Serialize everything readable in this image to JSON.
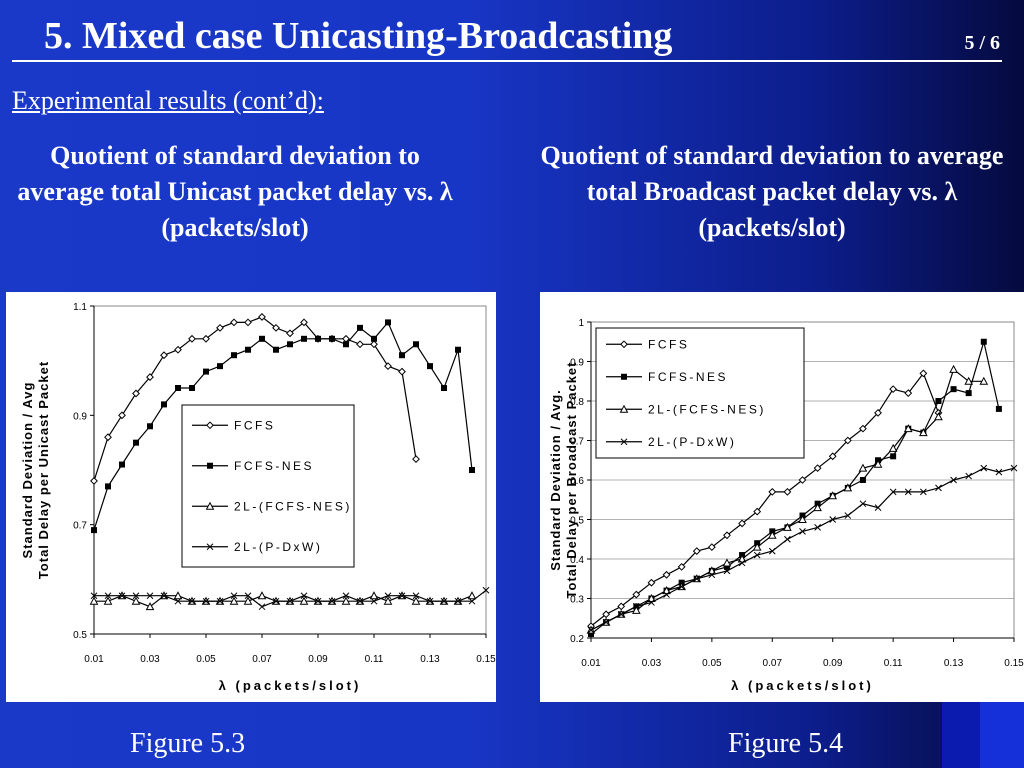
{
  "slide": {
    "title": "5.   Mixed case Unicasting-Broadcasting",
    "page": "5 / 6",
    "subtitle": "Experimental results (cont’d):",
    "caption_left": "Quotient of standard deviation to average total Unicast packet delay vs. λ (packets/slot)",
    "caption_right": "Quotient of standard deviation to average total Broadcast packet delay vs. λ (packets/slot)",
    "figure_left": "Figure 5.3",
    "figure_right": "Figure 5.4",
    "colors": {
      "background": "#1836c6",
      "text": "#ffffff",
      "plot_bg": "#ffffff",
      "lines": "#000000"
    }
  },
  "chart_data": [
    {
      "type": "line",
      "xlabel": "λ (packets/slot)",
      "ylabel": "Standard Deviation / Avg Total Delay per Unicast Packet",
      "xlim": [
        0.01,
        0.15
      ],
      "ylim": [
        0.5,
        1.1
      ],
      "xticks": [
        "0.01",
        "0.03",
        "0.05",
        "0.07",
        "0.09",
        "0.11",
        "0.13",
        "0.15"
      ],
      "yticks": [
        "0.5",
        "0.7",
        "0.9",
        "1.1"
      ],
      "grid": false,
      "legend_position": "center-right",
      "series": [
        {
          "name": "FCFS",
          "marker": "diamond-open",
          "x": [
            0.01,
            0.015,
            0.02,
            0.025,
            0.03,
            0.035,
            0.04,
            0.045,
            0.05,
            0.055,
            0.06,
            0.065,
            0.07,
            0.075,
            0.08,
            0.085,
            0.09,
            0.095,
            0.1,
            0.105,
            0.11,
            0.115,
            0.12,
            0.125
          ],
          "y": [
            0.78,
            0.86,
            0.9,
            0.94,
            0.97,
            1.01,
            1.02,
            1.04,
            1.04,
            1.06,
            1.07,
            1.07,
            1.08,
            1.06,
            1.05,
            1.07,
            1.04,
            1.04,
            1.04,
            1.03,
            1.03,
            0.99,
            0.98,
            0.82
          ]
        },
        {
          "name": "FCFS-NES",
          "marker": "square-filled",
          "x": [
            0.01,
            0.015,
            0.02,
            0.025,
            0.03,
            0.035,
            0.04,
            0.045,
            0.05,
            0.055,
            0.06,
            0.065,
            0.07,
            0.075,
            0.08,
            0.085,
            0.09,
            0.095,
            0.1,
            0.105,
            0.11,
            0.115,
            0.12,
            0.125,
            0.13,
            0.135,
            0.14,
            0.145
          ],
          "y": [
            0.69,
            0.77,
            0.81,
            0.85,
            0.88,
            0.92,
            0.95,
            0.95,
            0.98,
            0.99,
            1.01,
            1.02,
            1.04,
            1.02,
            1.03,
            1.04,
            1.04,
            1.04,
            1.03,
            1.06,
            1.04,
            1.07,
            1.01,
            1.03,
            0.99,
            0.95,
            1.02,
            0.8
          ]
        },
        {
          "name": "2L-(FCFS-NES)",
          "marker": "triangle-open",
          "x": [
            0.01,
            0.015,
            0.02,
            0.025,
            0.03,
            0.035,
            0.04,
            0.045,
            0.05,
            0.055,
            0.06,
            0.065,
            0.07,
            0.075,
            0.08,
            0.085,
            0.09,
            0.095,
            0.1,
            0.105,
            0.11,
            0.115,
            0.12,
            0.125,
            0.13,
            0.135,
            0.14,
            0.145
          ],
          "y": [
            0.56,
            0.56,
            0.57,
            0.56,
            0.55,
            0.57,
            0.57,
            0.56,
            0.56,
            0.56,
            0.56,
            0.56,
            0.57,
            0.56,
            0.56,
            0.56,
            0.56,
            0.56,
            0.56,
            0.56,
            0.57,
            0.56,
            0.57,
            0.56,
            0.56,
            0.56,
            0.56,
            0.57
          ]
        },
        {
          "name": "2L-(P-DxW)",
          "marker": "x",
          "x": [
            0.01,
            0.015,
            0.02,
            0.025,
            0.03,
            0.035,
            0.04,
            0.045,
            0.05,
            0.055,
            0.06,
            0.065,
            0.07,
            0.075,
            0.08,
            0.085,
            0.09,
            0.095,
            0.1,
            0.105,
            0.11,
            0.115,
            0.12,
            0.125,
            0.13,
            0.135,
            0.14,
            0.145,
            0.15
          ],
          "y": [
            0.57,
            0.57,
            0.57,
            0.57,
            0.57,
            0.57,
            0.56,
            0.56,
            0.56,
            0.56,
            0.57,
            0.57,
            0.55,
            0.56,
            0.56,
            0.57,
            0.56,
            0.56,
            0.57,
            0.56,
            0.56,
            0.57,
            0.57,
            0.57,
            0.56,
            0.56,
            0.56,
            0.56,
            0.58
          ]
        }
      ]
    },
    {
      "type": "line",
      "xlabel": "λ (packets/slot)",
      "ylabel": "Standard Deviation / Avg. Total Delay per Broadcast Packet",
      "xlim": [
        0.01,
        0.15
      ],
      "ylim": [
        0.2,
        1.0
      ],
      "xticks": [
        "0.01",
        "0.03",
        "0.05",
        "0.07",
        "0.09",
        "0.11",
        "0.13",
        "0.15"
      ],
      "yticks": [
        "0.2",
        "0.3",
        "0.4",
        "0.5",
        "0.6",
        "0.7",
        "0.8",
        "0.9",
        "1"
      ],
      "grid": true,
      "legend_position": "top-left",
      "series": [
        {
          "name": "FCFS",
          "marker": "diamond-open",
          "x": [
            0.01,
            0.015,
            0.02,
            0.025,
            0.03,
            0.035,
            0.04,
            0.045,
            0.05,
            0.055,
            0.06,
            0.065,
            0.07,
            0.075,
            0.08,
            0.085,
            0.09,
            0.095,
            0.1,
            0.105,
            0.11,
            0.115,
            0.12,
            0.125
          ],
          "y": [
            0.23,
            0.26,
            0.28,
            0.31,
            0.34,
            0.36,
            0.38,
            0.42,
            0.43,
            0.46,
            0.49,
            0.52,
            0.57,
            0.57,
            0.6,
            0.63,
            0.66,
            0.7,
            0.73,
            0.77,
            0.83,
            0.82,
            0.87,
            0.77
          ]
        },
        {
          "name": "FCFS-NES",
          "marker": "square-filled",
          "x": [
            0.01,
            0.015,
            0.02,
            0.025,
            0.03,
            0.035,
            0.04,
            0.045,
            0.05,
            0.055,
            0.06,
            0.065,
            0.07,
            0.075,
            0.08,
            0.085,
            0.09,
            0.095,
            0.1,
            0.105,
            0.11,
            0.115,
            0.12,
            0.125,
            0.13,
            0.135,
            0.14,
            0.145
          ],
          "y": [
            0.21,
            0.24,
            0.26,
            0.28,
            0.3,
            0.32,
            0.34,
            0.35,
            0.37,
            0.38,
            0.41,
            0.44,
            0.47,
            0.48,
            0.51,
            0.54,
            0.56,
            0.58,
            0.6,
            0.65,
            0.66,
            0.73,
            0.72,
            0.8,
            0.83,
            0.82,
            0.95,
            0.78
          ]
        },
        {
          "name": "2L-(FCFS-NES)",
          "marker": "triangle-open",
          "x": [
            0.01,
            0.015,
            0.02,
            0.025,
            0.03,
            0.035,
            0.04,
            0.045,
            0.05,
            0.055,
            0.06,
            0.065,
            0.07,
            0.075,
            0.08,
            0.085,
            0.09,
            0.095,
            0.1,
            0.105,
            0.11,
            0.115,
            0.12,
            0.125,
            0.13,
            0.135,
            0.14
          ],
          "y": [
            0.22,
            0.24,
            0.26,
            0.27,
            0.3,
            0.32,
            0.33,
            0.35,
            0.37,
            0.39,
            0.4,
            0.43,
            0.46,
            0.48,
            0.5,
            0.53,
            0.56,
            0.58,
            0.63,
            0.64,
            0.68,
            0.73,
            0.72,
            0.76,
            0.88,
            0.85,
            0.85
          ]
        },
        {
          "name": "2L-(P-DxW)",
          "marker": "x",
          "x": [
            0.01,
            0.015,
            0.02,
            0.025,
            0.03,
            0.035,
            0.04,
            0.045,
            0.05,
            0.055,
            0.06,
            0.065,
            0.07,
            0.075,
            0.08,
            0.085,
            0.09,
            0.095,
            0.1,
            0.105,
            0.11,
            0.115,
            0.12,
            0.125,
            0.13,
            0.135,
            0.14,
            0.145,
            0.15
          ],
          "y": [
            0.22,
            0.24,
            0.26,
            0.28,
            0.29,
            0.31,
            0.33,
            0.35,
            0.36,
            0.37,
            0.39,
            0.41,
            0.42,
            0.45,
            0.47,
            0.48,
            0.5,
            0.51,
            0.54,
            0.53,
            0.57,
            0.57,
            0.57,
            0.58,
            0.6,
            0.61,
            0.63,
            0.62,
            0.63
          ]
        }
      ]
    }
  ]
}
